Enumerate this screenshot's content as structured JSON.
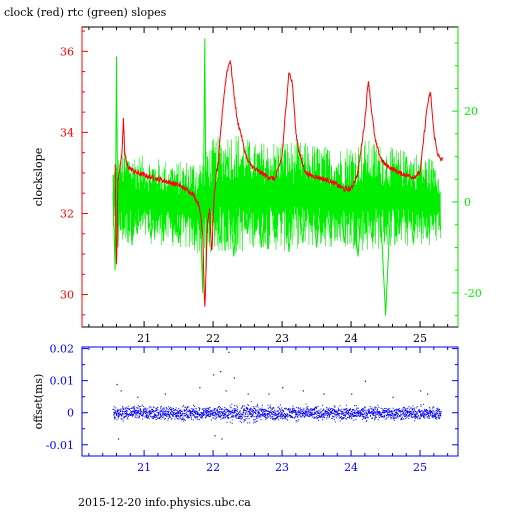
{
  "title": "clock (red) rtc (green) slopes",
  "footer": "2015-12-20 info.physics.ubc.ca",
  "colors": {
    "clock": "#ff0000",
    "rtc": "#00ee00",
    "offset": "#0000ff",
    "axes": "#000000"
  },
  "chart_data": [
    {
      "type": "line",
      "title": "clock (red) rtc (green) slopes",
      "xlabel": "",
      "ylabel": "clockslope",
      "xlim": [
        20.1,
        25.55
      ],
      "xticks": [
        21,
        22,
        23,
        24,
        25
      ],
      "ylim": [
        29.2,
        36.6
      ],
      "yticks": [
        30,
        32,
        34,
        36
      ],
      "y2label": "",
      "y2lim": [
        -27.5,
        38.5
      ],
      "y2ticks": [
        -20,
        0,
        20
      ],
      "series": [
        {
          "legend": "clock (red)",
          "axis": "left",
          "color": "#ff0000",
          "x": [
            20.58,
            20.6,
            20.62,
            20.64,
            20.66,
            20.68,
            20.7,
            20.72,
            20.75,
            20.8,
            20.9,
            21.0,
            21.1,
            21.2,
            21.3,
            21.4,
            21.5,
            21.6,
            21.7,
            21.8,
            21.85,
            21.88,
            21.9,
            21.92,
            21.95,
            21.98,
            22.0,
            22.02,
            22.05,
            22.08,
            22.1,
            22.15,
            22.2,
            22.25,
            22.3,
            22.35,
            22.4,
            22.45,
            22.5,
            22.6,
            22.7,
            22.8,
            22.9,
            23.0,
            23.05,
            23.1,
            23.15,
            23.2,
            23.25,
            23.3,
            23.35,
            23.4,
            23.5,
            23.6,
            23.7,
            23.8,
            23.9,
            24.0,
            24.1,
            24.2,
            24.25,
            24.3,
            24.35,
            24.4,
            24.45,
            24.5,
            24.6,
            24.7,
            24.8,
            24.9,
            25.0,
            25.05,
            25.1,
            25.15,
            25.2,
            25.25,
            25.3,
            25.33
          ],
          "y": [
            33.2,
            30.5,
            32.8,
            33.0,
            33.3,
            33.5,
            34.3,
            33.5,
            33.2,
            33.1,
            33.0,
            32.95,
            32.9,
            32.85,
            32.8,
            32.75,
            32.7,
            32.6,
            32.5,
            32.2,
            31.5,
            29.6,
            30.8,
            31.8,
            32.1,
            31.0,
            31.8,
            32.5,
            33.0,
            33.3,
            33.8,
            34.8,
            35.5,
            35.8,
            35.0,
            34.3,
            34.0,
            33.6,
            33.3,
            33.1,
            33.0,
            32.9,
            32.85,
            33.4,
            34.5,
            35.5,
            35.2,
            34.0,
            33.5,
            33.2,
            33.0,
            32.95,
            32.9,
            32.85,
            32.8,
            32.7,
            32.6,
            32.6,
            33.0,
            34.3,
            35.3,
            34.5,
            33.8,
            33.5,
            33.3,
            33.2,
            33.1,
            33.0,
            32.95,
            32.9,
            33.0,
            33.8,
            34.6,
            35.0,
            34.0,
            33.5,
            33.3,
            33.4
          ]
        },
        {
          "legend": "rtc (green)",
          "axis": "right",
          "color": "#00ee00",
          "x": [
            20.55,
            20.58,
            20.6,
            20.62,
            20.65,
            20.7,
            20.8,
            20.9,
            21.0,
            21.1,
            21.2,
            21.3,
            21.4,
            21.5,
            21.6,
            21.7,
            21.8,
            21.85,
            21.88,
            21.9,
            21.92,
            21.95,
            22.0,
            22.1,
            22.2,
            22.3,
            22.4,
            22.5,
            22.6,
            22.7,
            22.8,
            22.9,
            23.0,
            23.1,
            23.2,
            23.3,
            23.4,
            23.5,
            23.6,
            23.7,
            23.8,
            23.9,
            24.0,
            24.1,
            24.2,
            24.3,
            24.4,
            24.5,
            24.6,
            24.7,
            24.8,
            24.9,
            25.0,
            25.1,
            25.2,
            25.3
          ],
          "y": [
            2,
            -15,
            32,
            -10,
            8,
            -6,
            5,
            -7,
            6,
            -8,
            4,
            -5,
            7,
            -9,
            5,
            -6,
            4,
            -20,
            36,
            -15,
            10,
            -8,
            5,
            -9,
            10,
            -12,
            8,
            -7,
            9,
            -10,
            6,
            -8,
            9,
            -11,
            7,
            -9,
            8,
            -10,
            6,
            -8,
            7,
            -9,
            5,
            -12,
            9,
            -8,
            6,
            -25,
            8,
            -7,
            10,
            -9,
            6,
            -8,
            7,
            -6
          ],
          "band": {
            "x": [
              20.55,
              20.7,
              21.0,
              21.5,
              21.85,
              22.0,
              22.3,
              22.6,
              23.0,
              23.4,
              23.8,
              24.2,
              24.6,
              25.0,
              25.3
            ],
            "upper": [
              8,
              12,
              10,
              9,
              10,
              14,
              16,
              13,
              14,
              13,
              12,
              14,
              12,
              11,
              9
            ],
            "lower": [
              -7,
              -10,
              -9,
              -10,
              -12,
              -11,
              -12,
              -10,
              -11,
              -10,
              -10,
              -11,
              -10,
              -10,
              -9
            ]
          }
        }
      ]
    },
    {
      "type": "scatter",
      "xlabel": "",
      "ylabel": "offset(ms)",
      "xlim": [
        20.1,
        25.55
      ],
      "xticks": [
        21,
        22,
        23,
        24,
        25
      ],
      "ylim": [
        -0.0135,
        0.0205
      ],
      "yticks": [
        -0.01,
        0,
        0.01,
        0.02
      ],
      "series": [
        {
          "legend": "",
          "color": "#0000ff",
          "band": {
            "x": [
              20.55,
              21.0,
              21.5,
              22.0,
              22.5,
              23.0,
              23.5,
              24.0,
              24.5,
              25.0,
              25.3
            ],
            "upper": [
              0.003,
              0.003,
              0.003,
              0.003,
              0.004,
              0.003,
              0.003,
              0.003,
              0.003,
              0.003,
              0.003
            ],
            "lower": [
              -0.003,
              -0.003,
              -0.003,
              -0.003,
              -0.004,
              -0.003,
              -0.003,
              -0.003,
              -0.003,
              -0.003,
              -0.003
            ]
          },
          "outliers": {
            "x": [
              20.6,
              20.62,
              20.66,
              20.9,
              21.3,
              21.8,
              22.0,
              22.02,
              22.1,
              22.12,
              22.18,
              22.22,
              22.3,
              22.5,
              22.8,
              23.0,
              23.3,
              23.6,
              24.0,
              24.2,
              24.6,
              25.0,
              25.1
            ],
            "y": [
              0.009,
              -0.008,
              0.007,
              0.005,
              0.006,
              0.008,
              0.012,
              -0.007,
              0.013,
              -0.008,
              0.007,
              0.019,
              0.011,
              0.006,
              0.006,
              0.008,
              0.007,
              0.006,
              0.006,
              0.01,
              0.005,
              0.007,
              0.006
            ]
          }
        }
      ]
    }
  ]
}
